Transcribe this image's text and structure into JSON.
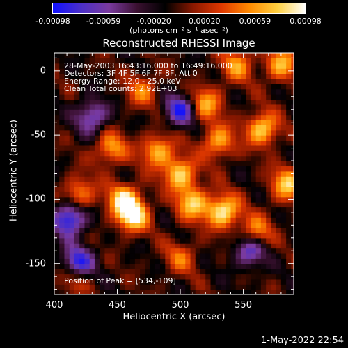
{
  "colorbar": {
    "colors": [
      "#1010ff",
      "#4b2fc8",
      "#7a3a9e",
      "#3a1030",
      "#000000",
      "#8a1800",
      "#e03800",
      "#ff8a00",
      "#ffd040",
      "#ffffff"
    ],
    "ticks": [
      "-0.00098",
      "-0.00059",
      "-0.00020",
      "0.00020",
      "0.00059",
      "0.00098"
    ],
    "units_label": "(photons cm⁻² s⁻¹ asec⁻²)"
  },
  "chart_data": {
    "type": "heatmap",
    "title": "Reconstructed RHESSI Image",
    "xlabel": "Heliocentric X (arcsec)",
    "ylabel": "Heliocentric Y (arcsec)",
    "xlim": [
      400,
      590
    ],
    "ylim": [
      -174,
      14
    ],
    "x_ticks": [
      "400",
      "450",
      "500",
      "550"
    ],
    "y_ticks": [
      "0",
      "-50",
      "-100",
      "-150"
    ],
    "value_range": [
      -0.00098,
      0.00098
    ],
    "peak": [
      534,
      -109
    ],
    "hot_spots": [
      {
        "x": 462,
        "y": -112,
        "value": 0.00098
      },
      {
        "x": 534,
        "y": -109,
        "value": 0.00098
      },
      {
        "x": 455,
        "y": -100,
        "value": 0.0008
      },
      {
        "x": 482,
        "y": -62,
        "value": 0.00075
      },
      {
        "x": 500,
        "y": -80,
        "value": 0.00085
      },
      {
        "x": 510,
        "y": -103,
        "value": 0.0008
      },
      {
        "x": 520,
        "y": -25,
        "value": 0.0007
      },
      {
        "x": 530,
        "y": -55,
        "value": 0.0007
      },
      {
        "x": 565,
        "y": -45,
        "value": 0.00085
      },
      {
        "x": 585,
        "y": -88,
        "value": 0.0008
      },
      {
        "x": 560,
        "y": -125,
        "value": 0.0006
      },
      {
        "x": 580,
        "y": 5,
        "value": 0.0007
      },
      {
        "x": 445,
        "y": -60,
        "value": 0.00065
      },
      {
        "x": 470,
        "y": -15,
        "value": 0.0005
      },
      {
        "x": 545,
        "y": 5,
        "value": 0.0006
      },
      {
        "x": 420,
        "y": -95,
        "value": 0.0006
      },
      {
        "x": 500,
        "y": -145,
        "value": 0.00045
      },
      {
        "x": 415,
        "y": -160,
        "value": 0.0005
      }
    ],
    "cold_spots": [
      {
        "x": 418,
        "y": -150,
        "value": -0.00098
      },
      {
        "x": 412,
        "y": -115,
        "value": -0.00098
      },
      {
        "x": 500,
        "y": -30,
        "value": -0.0008
      },
      {
        "x": 555,
        "y": -140,
        "value": -0.0007
      },
      {
        "x": 430,
        "y": -35,
        "value": -0.0007
      }
    ]
  },
  "annotations": {
    "time": "28-May-2003 16:43:16.000 to 16:49:16.000",
    "detectors": "Detectors: 3F 4F 5F 6F 7F 8F, Att 0",
    "energy": "Energy Range: 12.0 - 25.0 keV",
    "clean": "Clean     Total counts: 2.92E+03",
    "peak": "Position of Peak = [534,-109]"
  },
  "timestamp": "1-May-2022 22:54"
}
